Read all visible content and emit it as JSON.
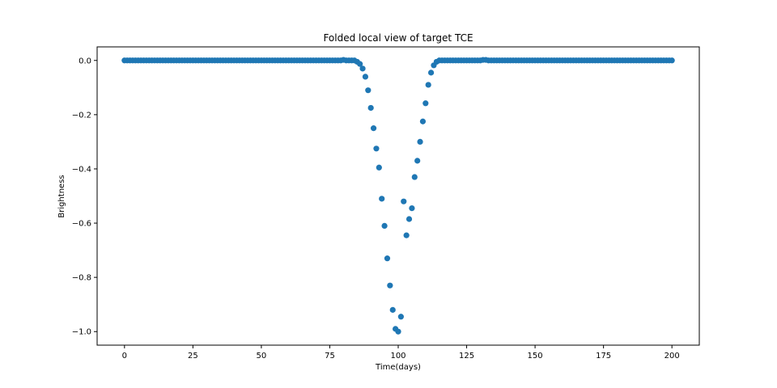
{
  "chart_data": {
    "type": "scatter",
    "title": "Folded local view of target TCE",
    "xlabel": "Time(days)",
    "ylabel": "Brightness",
    "xlim": [
      -10,
      210
    ],
    "ylim": [
      -1.05,
      0.05
    ],
    "xticks": [
      0,
      25,
      50,
      75,
      100,
      125,
      150,
      175,
      200
    ],
    "xtick_labels": [
      "0",
      "25",
      "50",
      "75",
      "100",
      "125",
      "150",
      "175",
      "200"
    ],
    "yticks": [
      0.0,
      -0.2,
      -0.4,
      -0.6,
      -0.8,
      -1.0
    ],
    "ytick_labels": [
      "0.0",
      "−0.2",
      "−0.4",
      "−0.6",
      "−0.8",
      "−1.0"
    ],
    "grid": false,
    "marker_color": "#1f77b4",
    "baseline": {
      "x_start": 0,
      "x_end": 200,
      "y": 0.0,
      "excluded_x": [
        80,
        81,
        82,
        83,
        84,
        85,
        86,
        87,
        88,
        89,
        90,
        91,
        92,
        93,
        94,
        95,
        96,
        97,
        98,
        99,
        100,
        101,
        102,
        103,
        104,
        105,
        106,
        107,
        108,
        109,
        110,
        111,
        112,
        113,
        114,
        115,
        131,
        132
      ]
    },
    "points": [
      {
        "x": 80,
        "y": 0.002
      },
      {
        "x": 81,
        "y": 0.0
      },
      {
        "x": 82,
        "y": 0.0
      },
      {
        "x": 83,
        "y": 0.0
      },
      {
        "x": 84,
        "y": 0.0
      },
      {
        "x": 85,
        "y": -0.005
      },
      {
        "x": 86,
        "y": -0.013
      },
      {
        "x": 87,
        "y": -0.03
      },
      {
        "x": 88,
        "y": -0.06
      },
      {
        "x": 89,
        "y": -0.11
      },
      {
        "x": 90,
        "y": -0.175
      },
      {
        "x": 91,
        "y": -0.25
      },
      {
        "x": 92,
        "y": -0.325
      },
      {
        "x": 93,
        "y": -0.395
      },
      {
        "x": 94,
        "y": -0.51
      },
      {
        "x": 95,
        "y": -0.61
      },
      {
        "x": 96,
        "y": -0.73
      },
      {
        "x": 97,
        "y": -0.83
      },
      {
        "x": 98,
        "y": -0.92
      },
      {
        "x": 99,
        "y": -0.99
      },
      {
        "x": 100,
        "y": -1.0
      },
      {
        "x": 101,
        "y": -0.945
      },
      {
        "x": 102,
        "y": -0.52
      },
      {
        "x": 103,
        "y": -0.645
      },
      {
        "x": 104,
        "y": -0.585
      },
      {
        "x": 105,
        "y": -0.545
      },
      {
        "x": 106,
        "y": -0.43
      },
      {
        "x": 107,
        "y": -0.37
      },
      {
        "x": 108,
        "y": -0.3
      },
      {
        "x": 109,
        "y": -0.225
      },
      {
        "x": 110,
        "y": -0.158
      },
      {
        "x": 111,
        "y": -0.09
      },
      {
        "x": 112,
        "y": -0.045
      },
      {
        "x": 113,
        "y": -0.018
      },
      {
        "x": 114,
        "y": -0.005
      },
      {
        "x": 115,
        "y": 0.0
      },
      {
        "x": 131,
        "y": 0.002
      },
      {
        "x": 132,
        "y": 0.002
      }
    ]
  }
}
